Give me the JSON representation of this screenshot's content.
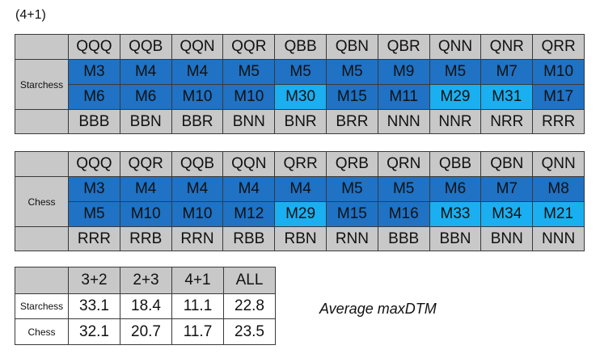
{
  "title": "(4+1)",
  "tables": [
    {
      "row_label": "Starchess",
      "header": [
        "QQQ",
        "QQB",
        "QQN",
        "QQR",
        "QBB",
        "QBN",
        "QBR",
        "QNN",
        "QNR",
        "QRR"
      ],
      "rows": [
        [
          "M3",
          "M4",
          "M4",
          "M5",
          "M5",
          "M5",
          "M9",
          "M5",
          "M7",
          "M10"
        ],
        [
          "M6",
          "M6",
          "M10",
          "M10",
          "M30",
          "M15",
          "M11",
          "M29",
          "M31",
          "M17"
        ]
      ],
      "footer": [
        "BBB",
        "BBN",
        "BBR",
        "BNN",
        "BNR",
        "BRR",
        "NNN",
        "NNR",
        "NRR",
        "RRR"
      ]
    },
    {
      "row_label": "Chess",
      "header": [
        "QQQ",
        "QQR",
        "QQB",
        "QQN",
        "QRR",
        "QRB",
        "QRN",
        "QBB",
        "QBN",
        "QNN"
      ],
      "rows": [
        [
          "M3",
          "M4",
          "M4",
          "M4",
          "M4",
          "M5",
          "M5",
          "M6",
          "M7",
          "M8"
        ],
        [
          "M5",
          "M10",
          "M10",
          "M12",
          "M29",
          "M15",
          "M16",
          "M33",
          "M34",
          "M21"
        ]
      ],
      "footer": [
        "RRR",
        "RRB",
        "RRN",
        "RBB",
        "RBN",
        "RNN",
        "BBB",
        "BBN",
        "BNN",
        "NNN"
      ]
    }
  ],
  "summary": {
    "header": [
      "3+2",
      "2+3",
      "4+1",
      "ALL"
    ],
    "rows": [
      {
        "label": "Starchess",
        "values": [
          33.1,
          18.4,
          11.1,
          22.8
        ]
      },
      {
        "label": "Chess",
        "values": [
          32.1,
          20.7,
          11.7,
          23.5
        ]
      }
    ]
  },
  "note": "Average maxDTM"
}
